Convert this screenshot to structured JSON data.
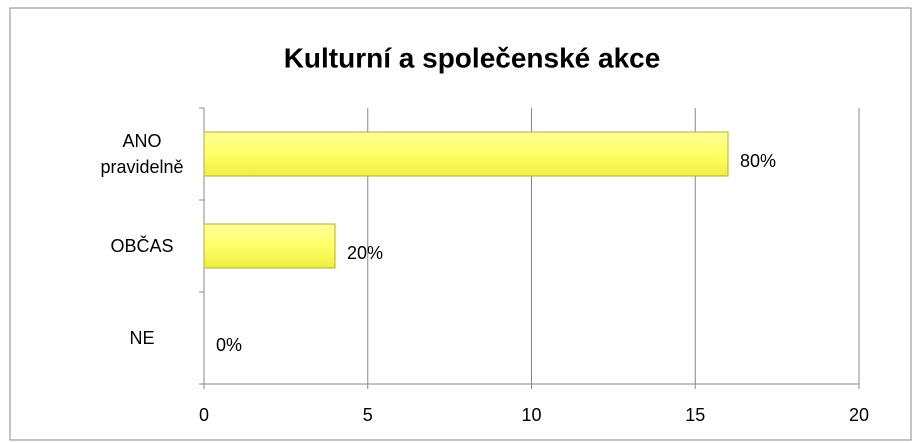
{
  "chart_data": {
    "type": "bar",
    "orientation": "horizontal",
    "title": "Kulturní a společenské akce",
    "categories": [
      "ANO pravidelně",
      "OBČAS",
      "NE"
    ],
    "values": [
      16,
      4,
      0
    ],
    "value_labels": [
      "80%",
      "20%",
      "0%"
    ],
    "color": "#ffff66",
    "xlim": [
      0,
      20
    ],
    "xticks": [
      0,
      5,
      10,
      15,
      20
    ],
    "grid": true
  }
}
